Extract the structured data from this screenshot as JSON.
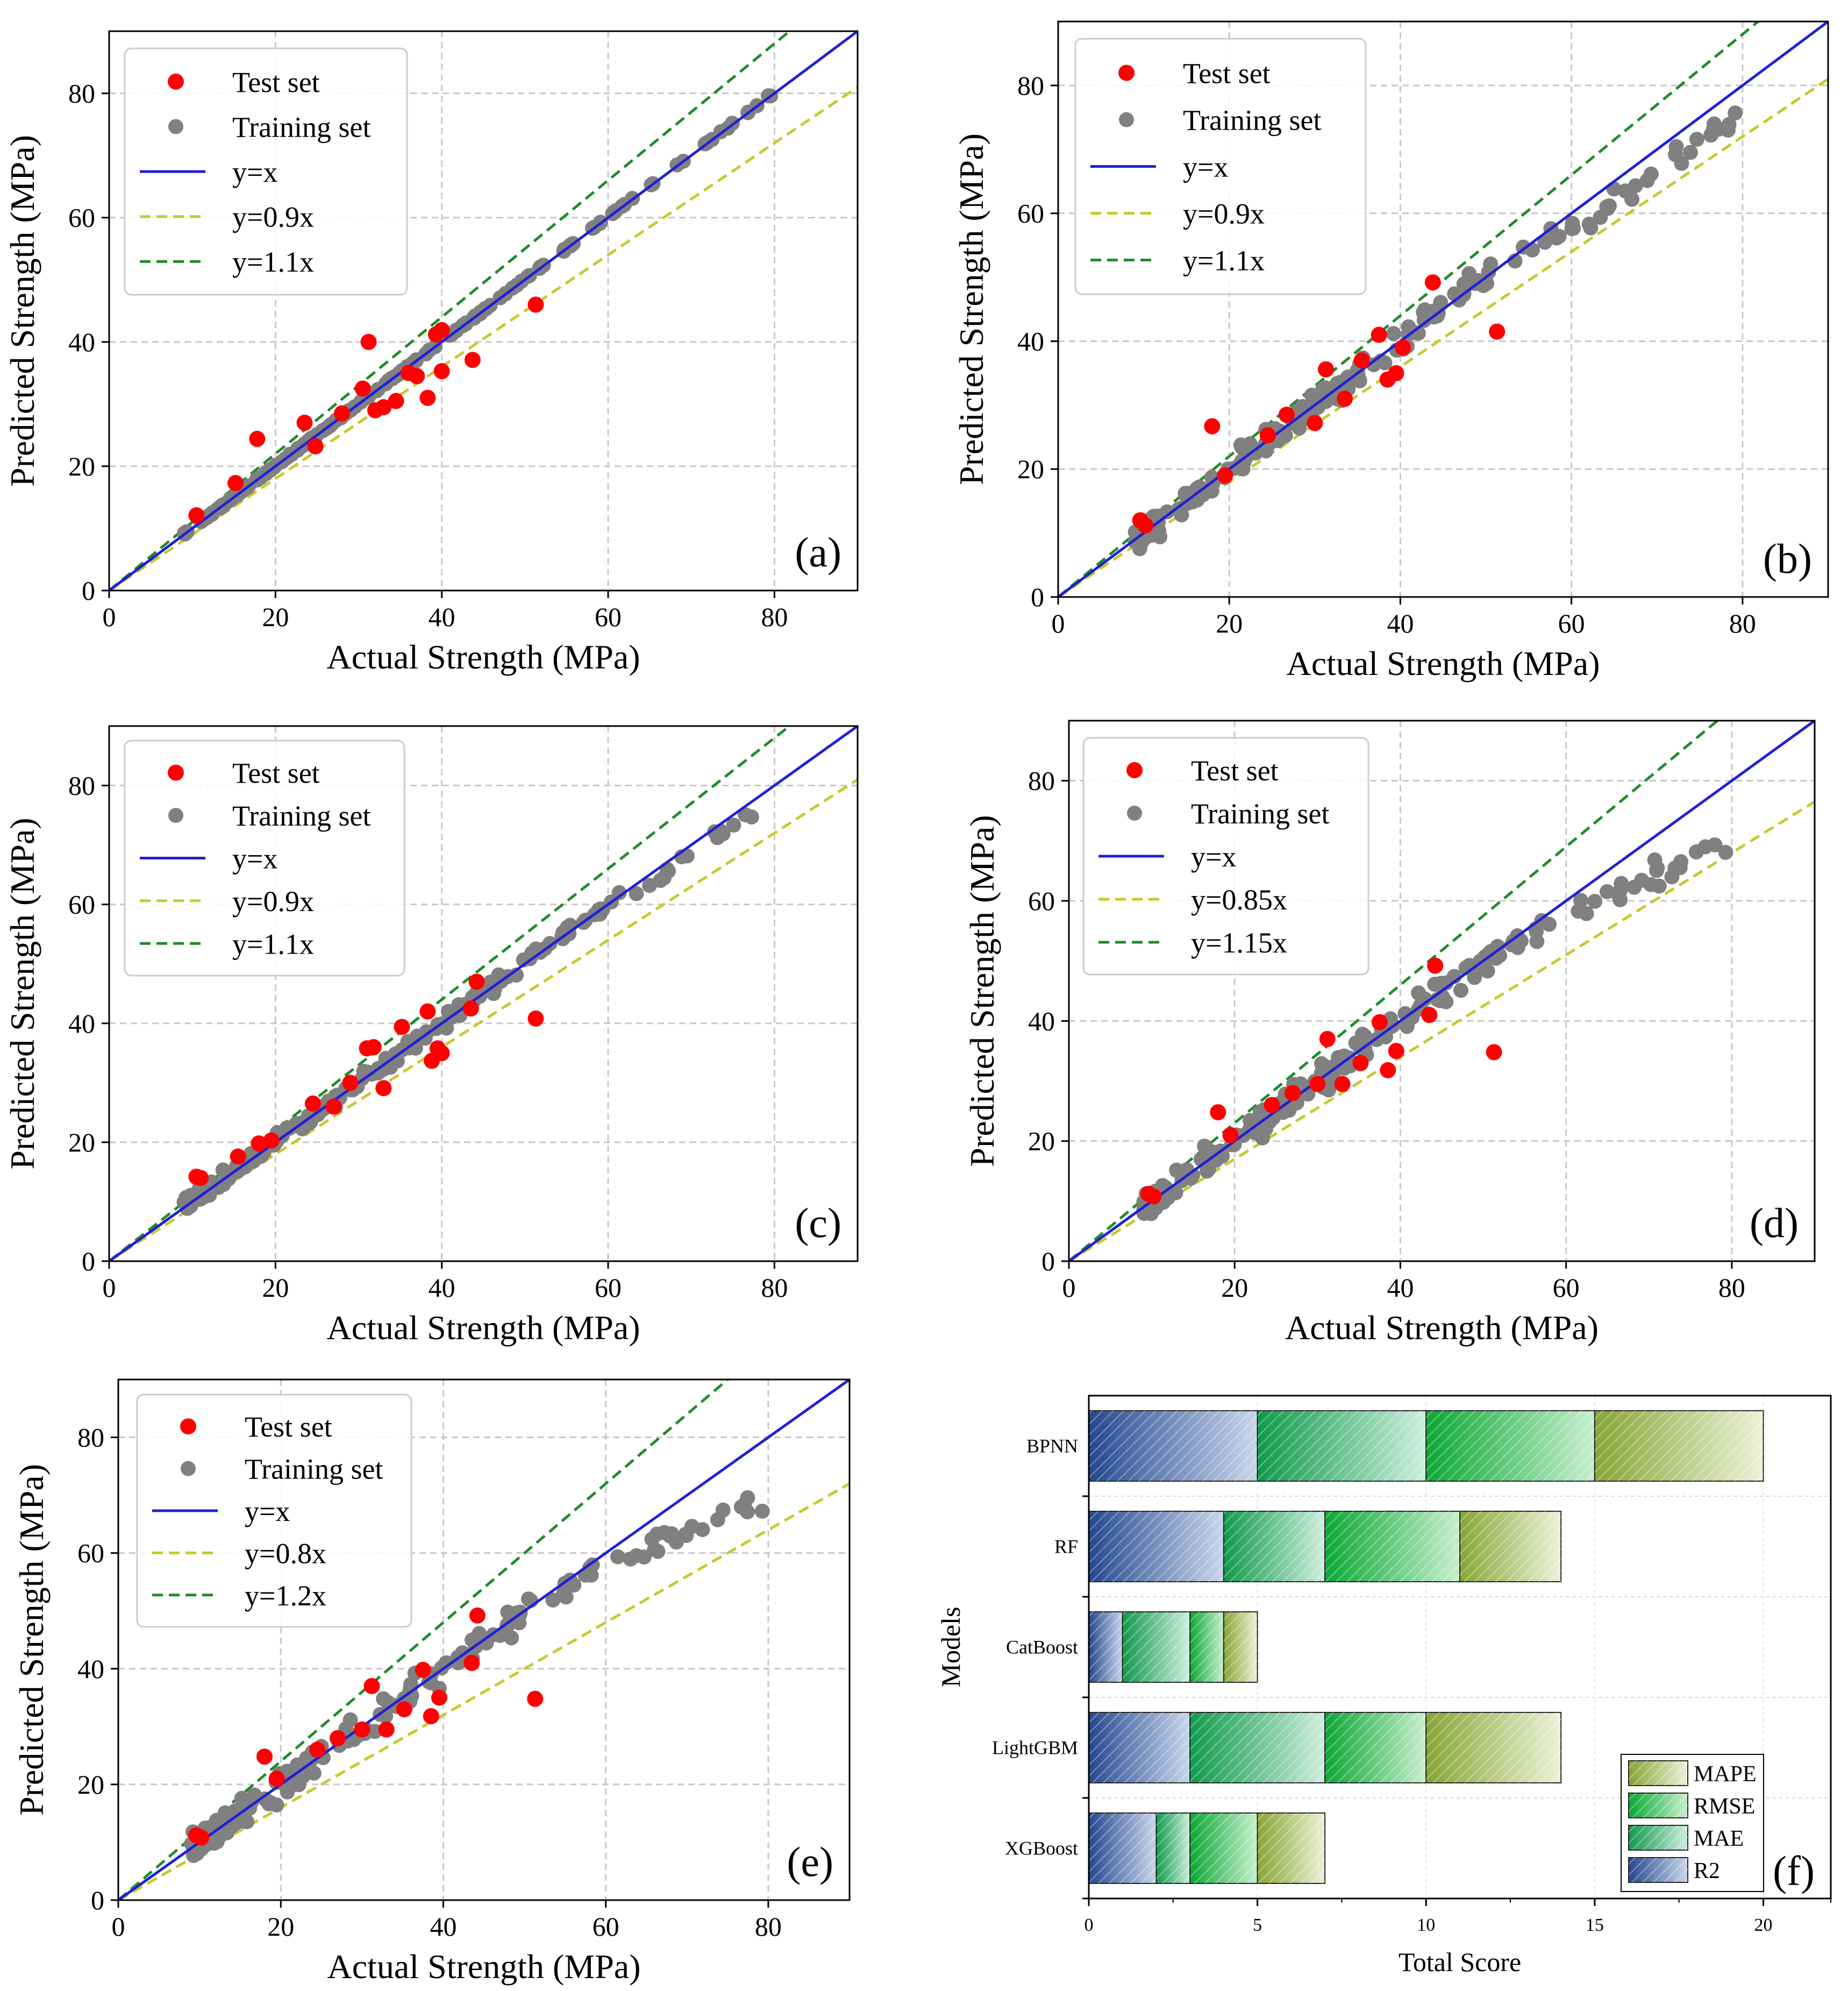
{
  "figure": {
    "colors": {
      "test": "#ff0000",
      "train": "#808080",
      "identity": "#1f1fd6",
      "lower": "#c8c82a",
      "upper": "#1e8c28",
      "grid": "#c8c8c8",
      "bar_r2": "#2b4f9a",
      "bar_mae": "#17a355",
      "bar_rmse": "#19b040",
      "bar_mape": "#8aaa3a"
    }
  },
  "chart_data": [
    {
      "panel": "(a)",
      "type": "scatter",
      "xlabel": "Actual Strength (MPa)",
      "ylabel": "Predicted Strength (MPa)",
      "xlim": [
        0,
        90
      ],
      "ylim": [
        0,
        90
      ],
      "xticks": [
        "0",
        "20",
        "40",
        "60",
        "80"
      ],
      "yticks": [
        "0",
        "20",
        "40",
        "60",
        "80"
      ],
      "legend": {
        "test": "Test set",
        "train": "Training set",
        "identity": "y=x",
        "lower": "y=0.9x",
        "upper": "y=1.1x"
      },
      "lower_slope": 0.9,
      "upper_slope": 1.1,
      "train_mode": "tight",
      "test_points": [
        [
          10.5,
          12.1
        ],
        [
          15.2,
          17.3
        ],
        [
          17.8,
          24.4
        ],
        [
          23.5,
          27.0
        ],
        [
          24.8,
          23.2
        ],
        [
          28.0,
          28.5
        ],
        [
          30.5,
          32.5
        ],
        [
          31.2,
          40.0
        ],
        [
          32.0,
          29.0
        ],
        [
          33.0,
          29.5
        ],
        [
          34.5,
          30.5
        ],
        [
          36.0,
          35.0
        ],
        [
          37.0,
          34.5
        ],
        [
          38.3,
          31.0
        ],
        [
          39.3,
          41.2
        ],
        [
          40.0,
          41.9
        ],
        [
          40.0,
          35.3
        ],
        [
          43.7,
          37.1
        ],
        [
          51.3,
          46.0
        ]
      ]
    },
    {
      "panel": "(b)",
      "type": "scatter",
      "xlabel": "Actual Strength (MPa)",
      "ylabel": "Predicted Strength (MPa)",
      "xlim": [
        0,
        90
      ],
      "ylim": [
        0,
        90
      ],
      "xticks": [
        "0",
        "20",
        "40",
        "60",
        "80"
      ],
      "yticks": [
        "0",
        "20",
        "40",
        "60",
        "80"
      ],
      "legend": {
        "test": "Test set",
        "train": "Training set",
        "identity": "y=x",
        "lower": "y=0.9x",
        "upper": "y=1.1x"
      },
      "lower_slope": 0.9,
      "upper_slope": 1.1,
      "train_mode": "loose",
      "test_points": [
        [
          9.6,
          12.0
        ],
        [
          10.2,
          11.2
        ],
        [
          18.0,
          26.7
        ],
        [
          19.5,
          19.0
        ],
        [
          24.5,
          25.3
        ],
        [
          26.7,
          28.5
        ],
        [
          30.0,
          27.2
        ],
        [
          31.3,
          35.6
        ],
        [
          33.5,
          31.0
        ],
        [
          35.5,
          37.0
        ],
        [
          37.5,
          41.0
        ],
        [
          38.5,
          34.0
        ],
        [
          39.5,
          35.0
        ],
        [
          40.3,
          39.0
        ],
        [
          43.8,
          49.2
        ],
        [
          51.3,
          41.5
        ]
      ]
    },
    {
      "panel": "(c)",
      "type": "scatter",
      "xlabel": "Actual Strength (MPa)",
      "ylabel": "Predicted Strength (MPa)",
      "xlim": [
        0,
        90
      ],
      "ylim": [
        0,
        90
      ],
      "xticks": [
        "0",
        "20",
        "40",
        "60",
        "80"
      ],
      "yticks": [
        "0",
        "20",
        "40",
        "60",
        "80"
      ],
      "legend": {
        "test": "Test set",
        "train": "Training set",
        "identity": "y=x",
        "lower": "y=0.9x",
        "upper": "y=1.1x"
      },
      "lower_slope": 0.9,
      "upper_slope": 1.1,
      "train_mode": "medium",
      "test_points": [
        [
          10.5,
          14.2
        ],
        [
          11.0,
          14.0
        ],
        [
          15.5,
          17.6
        ],
        [
          18.0,
          19.8
        ],
        [
          19.5,
          20.3
        ],
        [
          24.5,
          26.5
        ],
        [
          27.0,
          26.0
        ],
        [
          29.0,
          30.0
        ],
        [
          31.0,
          35.8
        ],
        [
          31.8,
          36.0
        ],
        [
          33.0,
          29.1
        ],
        [
          35.2,
          39.4
        ],
        [
          38.3,
          42.0
        ],
        [
          38.8,
          33.7
        ],
        [
          39.5,
          35.8
        ],
        [
          40.0,
          35.0
        ],
        [
          43.5,
          42.5
        ],
        [
          44.2,
          47.0
        ],
        [
          51.3,
          40.8
        ]
      ]
    },
    {
      "panel": "(d)",
      "type": "scatter",
      "xlabel": "Actual Strength (MPa)",
      "ylabel": "Predicted Strength (MPa)",
      "xlim": [
        0,
        90
      ],
      "ylim": [
        0,
        90
      ],
      "xticks": [
        "0",
        "20",
        "40",
        "60",
        "80"
      ],
      "yticks": [
        "0",
        "20",
        "40",
        "60",
        "80"
      ],
      "legend": {
        "test": "Test set",
        "train": "Training set",
        "identity": "y=x",
        "lower": "y=0.85x",
        "upper": "y=1.15x"
      },
      "lower_slope": 0.85,
      "upper_slope": 1.15,
      "train_mode": "wide",
      "test_points": [
        [
          9.6,
          11.2
        ],
        [
          10.2,
          10.8
        ],
        [
          18.0,
          24.8
        ],
        [
          19.5,
          21.0
        ],
        [
          24.5,
          26.0
        ],
        [
          27.0,
          28.0
        ],
        [
          30.0,
          29.5
        ],
        [
          31.2,
          37.0
        ],
        [
          33.0,
          29.5
        ],
        [
          35.2,
          33.0
        ],
        [
          37.5,
          39.8
        ],
        [
          38.5,
          31.8
        ],
        [
          39.5,
          35.0
        ],
        [
          43.5,
          41.0
        ],
        [
          44.2,
          49.2
        ],
        [
          51.3,
          34.8
        ]
      ]
    },
    {
      "panel": "(e)",
      "type": "scatter",
      "xlabel": "Actual Strength (MPa)",
      "ylabel": "Predicted Strength (MPa)",
      "xlim": [
        0,
        90
      ],
      "ylim": [
        0,
        90
      ],
      "xticks": [
        "0",
        "20",
        "40",
        "60",
        "80"
      ],
      "yticks": [
        "0",
        "20",
        "40",
        "60",
        "80"
      ],
      "legend": {
        "test": "Test set",
        "train": "Training set",
        "identity": "y=x",
        "lower": "y=0.8x",
        "upper": "y=1.2x"
      },
      "lower_slope": 0.8,
      "upper_slope": 1.2,
      "train_mode": "wide",
      "test_points": [
        [
          9.6,
          11.2
        ],
        [
          10.2,
          10.8
        ],
        [
          18.0,
          24.8
        ],
        [
          19.5,
          21.0
        ],
        [
          24.5,
          26.0
        ],
        [
          27.0,
          28.0
        ],
        [
          30.0,
          29.5
        ],
        [
          31.2,
          37.0
        ],
        [
          33.0,
          29.5
        ],
        [
          35.2,
          33.0
        ],
        [
          37.5,
          39.8
        ],
        [
          38.5,
          31.8
        ],
        [
          39.5,
          35.0
        ],
        [
          43.5,
          41.0
        ],
        [
          44.2,
          49.2
        ],
        [
          51.3,
          34.8
        ]
      ]
    },
    {
      "panel": "(f)",
      "type": "bar",
      "orientation": "horizontal",
      "stacked": true,
      "title": "",
      "xlabel": "Total Score",
      "ylabel": "Models",
      "xlim": [
        0,
        22
      ],
      "xticks": [
        "0",
        "5",
        "10",
        "15",
        "20"
      ],
      "categories": [
        "BPNN",
        "RF",
        "CatBoost",
        "LightGBM",
        "XGBoost"
      ],
      "series": [
        {
          "name": "R2",
          "values": [
            5,
            4,
            1,
            3,
            2
          ]
        },
        {
          "name": "MAE",
          "values": [
            5,
            3,
            2,
            4,
            1
          ]
        },
        {
          "name": "RMSE",
          "values": [
            5,
            4,
            1,
            3,
            2
          ]
        },
        {
          "name": "MAPE",
          "values": [
            5,
            3,
            1,
            4,
            2
          ]
        }
      ],
      "legend_order": [
        "MAPE",
        "RMSE",
        "MAE",
        "R2"
      ]
    }
  ]
}
